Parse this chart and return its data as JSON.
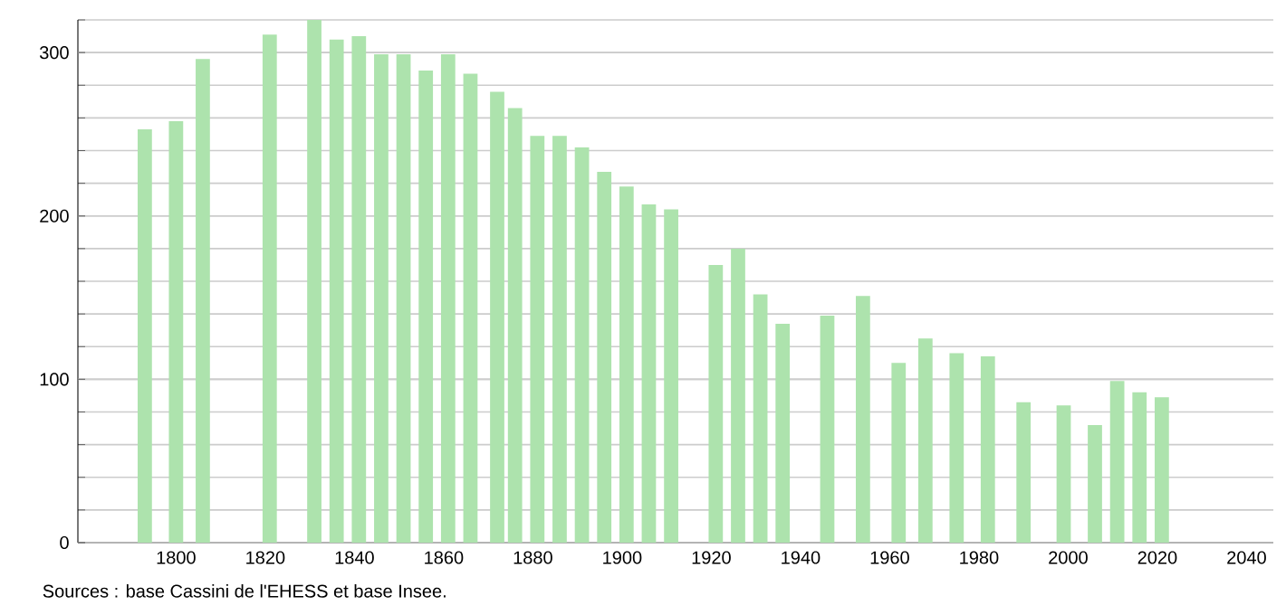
{
  "chart_data": {
    "type": "bar",
    "color": "#ade3ad",
    "x": [
      1793,
      1800,
      1806,
      1821,
      1831,
      1836,
      1841,
      1846,
      1851,
      1856,
      1861,
      1866,
      1872,
      1876,
      1881,
      1886,
      1891,
      1896,
      1901,
      1906,
      1911,
      1921,
      1926,
      1931,
      1936,
      1946,
      1954,
      1962,
      1968,
      1975,
      1982,
      1990,
      1999,
      2006,
      2011,
      2016,
      2021
    ],
    "values": [
      253,
      258,
      296,
      311,
      320,
      308,
      310,
      299,
      299,
      289,
      299,
      287,
      276,
      266,
      249,
      249,
      242,
      227,
      218,
      207,
      204,
      170,
      180,
      152,
      134,
      139,
      151,
      110,
      125,
      116,
      114,
      86,
      84,
      72,
      99,
      92,
      89
    ],
    "xlim": [
      1778,
      2046
    ],
    "xticks": [
      1800,
      1820,
      1840,
      1860,
      1880,
      1900,
      1920,
      1940,
      1960,
      1980,
      2000,
      2020,
      2040
    ],
    "ylim": [
      0,
      320
    ],
    "yticks": [
      0,
      {
        "value": 20,
        "label": null
      },
      {
        "value": 40,
        "label": null
      },
      {
        "value": 60,
        "label": null
      },
      {
        "value": 80,
        "label": null
      },
      100,
      {
        "value": 120,
        "label": null
      },
      {
        "value": 140,
        "label": null
      },
      {
        "value": 160,
        "label": null
      },
      {
        "value": 180,
        "label": null
      },
      200,
      {
        "value": 220,
        "label": null
      },
      {
        "value": 240,
        "label": null
      },
      {
        "value": 260,
        "label": null
      },
      {
        "value": 280,
        "label": null
      },
      300,
      {
        "value": 320,
        "label": null
      }
    ],
    "grid": "y",
    "annotations": [
      "Sources : base Cassini de l'EHESS et base Insee."
    ]
  }
}
